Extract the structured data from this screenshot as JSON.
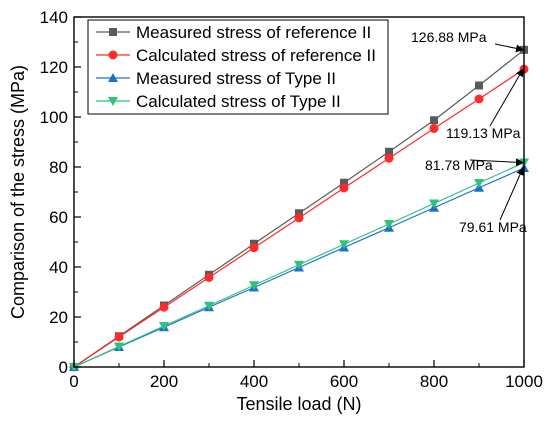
{
  "chart_data": {
    "type": "line",
    "xlabel": "Tensile load (N)",
    "ylabel": "Comparison of the stress (MPa)",
    "xlim": [
      0,
      1000
    ],
    "ylim": [
      0,
      140
    ],
    "xticks": [
      0,
      200,
      400,
      600,
      800,
      1000
    ],
    "yticks": [
      0,
      20,
      40,
      60,
      80,
      100,
      120,
      140
    ],
    "x": [
      0,
      100,
      200,
      300,
      400,
      500,
      600,
      700,
      800,
      900,
      1000
    ],
    "legend_position": "top-left",
    "grid": false,
    "series": [
      {
        "name": "Measured stress of reference II",
        "marker": "square",
        "color": "#5a5a5a",
        "values": [
          0,
          12.3,
          24.6,
          36.9,
          49.3,
          61.5,
          73.7,
          86.1,
          98.7,
          112.6,
          126.88
        ]
      },
      {
        "name": "Calculated stress of reference II",
        "marker": "circle",
        "color": "#ff2a2a",
        "values": [
          0,
          12.0,
          23.9,
          35.8,
          47.7,
          59.6,
          71.6,
          83.5,
          95.4,
          107.2,
          119.13
        ]
      },
      {
        "name": "Measured stress of Type II",
        "marker": "triangle-up",
        "color": "#1f6fd1",
        "values": [
          0,
          8.0,
          15.9,
          23.9,
          31.8,
          39.8,
          47.8,
          55.7,
          63.7,
          71.7,
          79.61
        ]
      },
      {
        "name": "Calculated stress of Type II",
        "marker": "triangle-down",
        "color": "#2fc27a",
        "values": [
          0,
          8.2,
          16.4,
          24.5,
          32.7,
          40.9,
          49.1,
          57.2,
          65.4,
          73.6,
          81.78
        ]
      }
    ],
    "annotations": [
      {
        "text": "126.88 MPa",
        "x": 1000,
        "y": 126.88
      },
      {
        "text": "119.13 MPa",
        "x": 1000,
        "y": 119.13
      },
      {
        "text": "81.78 MPa",
        "x": 1000,
        "y": 81.78
      },
      {
        "text": "79.61 MPa",
        "x": 1000,
        "y": 79.61
      }
    ]
  }
}
